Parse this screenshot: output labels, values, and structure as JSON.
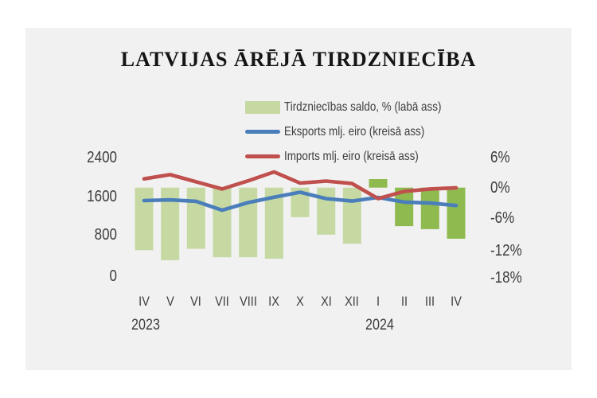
{
  "page": {
    "background": "#ffffff",
    "panel_color": "#f1f1f1",
    "text_color": "#3d3d3d"
  },
  "title": "LATVIJAS ĀRĒJĀ TIRDZNIECĪBA",
  "legend": [
    {
      "label": "Tirdzniecības saldo, % (labā ass)",
      "swatch": "bar",
      "color": "#c6d9a2"
    },
    {
      "label": "Eksports mlj. eiro (kreisā ass)",
      "swatch": "line",
      "color": "#4a7ebb"
    },
    {
      "label": "Imports mlj. eiro (kreisā ass)",
      "swatch": "line",
      "color": "#c0504d"
    }
  ],
  "chart_data": {
    "type": "bar",
    "subtype": "bar+line combo, dual axis",
    "title": "LATVIJAS ĀRĒJĀ TIRDZNIECĪBA",
    "categories": [
      "IV",
      "V",
      "VI",
      "VII",
      "VIII",
      "IX",
      "X",
      "XI",
      "XII",
      "I",
      "II",
      "III",
      "IV"
    ],
    "year_labels": [
      {
        "text": "2023",
        "under_category_index": 0
      },
      {
        "text": "2024",
        "under_category_index": 9
      }
    ],
    "series": [
      {
        "name": "Tirdzniecības saldo, % (labā ass)",
        "type": "bar",
        "axis": "right",
        "unit": "%",
        "values": [
          -12.5,
          -14.5,
          -12.2,
          -13.9,
          -13.9,
          -14.2,
          -5.9,
          -9.4,
          -11.2,
          1.7,
          -7.7,
          -8.3,
          -10.2
        ],
        "colors": {
          "2023": "#c6d9a2",
          "2024": "#8fba50"
        },
        "color_split_index": 9
      },
      {
        "name": "Eksports mlj. eiro (kreisā ass)",
        "type": "line",
        "axis": "left",
        "unit": "mlj. eiro",
        "values": [
          1530,
          1545,
          1515,
          1335,
          1490,
          1600,
          1700,
          1570,
          1520,
          1595,
          1500,
          1480,
          1430
        ],
        "color": "#4a7ebb"
      },
      {
        "name": "Imports mlj. eiro (kreisā ass)",
        "type": "line",
        "axis": "left",
        "unit": "mlj. eiro",
        "values": [
          1970,
          2055,
          1910,
          1765,
          1930,
          2110,
          1885,
          1925,
          1875,
          1570,
          1715,
          1765,
          1790
        ],
        "color": "#c0504d"
      }
    ],
    "left_axis": {
      "ticks": [
        "2400",
        "1600",
        "800",
        "0"
      ],
      "range": [
        0,
        2400
      ]
    },
    "right_axis": {
      "ticks": [
        "6%",
        "0%",
        "-6%",
        "-12%",
        "-18%"
      ],
      "range": [
        -18,
        6
      ]
    },
    "grid": "off",
    "legend_position": "top-center"
  }
}
